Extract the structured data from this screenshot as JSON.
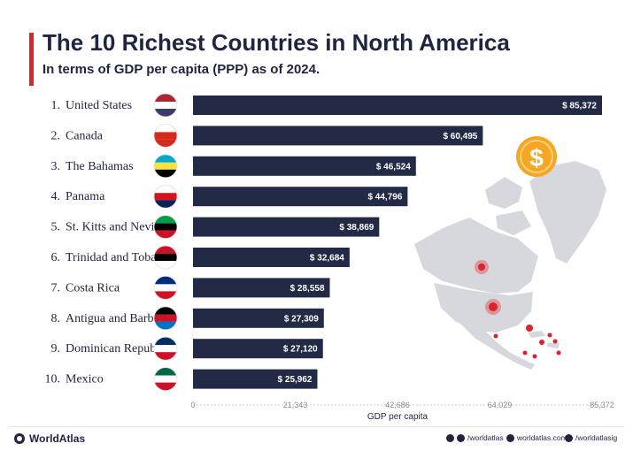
{
  "header": {
    "title": "The 10 Richest Countries in North America",
    "subtitle": "In terms of GDP per capita (PPP) as of 2024."
  },
  "chart_data": {
    "type": "bar",
    "orientation": "horizontal",
    "categories": [
      {
        "rank": "1.",
        "name": "United States"
      },
      {
        "rank": "2.",
        "name": "Canada"
      },
      {
        "rank": "3.",
        "name": "The Bahamas"
      },
      {
        "rank": "4.",
        "name": "Panama"
      },
      {
        "rank": "5.",
        "name": "St. Kitts and Nevis"
      },
      {
        "rank": "6.",
        "name": "Trinidad and Tobago"
      },
      {
        "rank": "7.",
        "name": "Costa Rica"
      },
      {
        "rank": "8.",
        "name": "Antigua and Barboda"
      },
      {
        "rank": "9.",
        "name": "Dominican Republic"
      },
      {
        "rank": "10.",
        "name": "Mexico"
      }
    ],
    "values": [
      85372,
      60495,
      46524,
      44796,
      38869,
      32684,
      28558,
      27309,
      27120,
      25962
    ],
    "value_labels": [
      "$ 85,372",
      "$ 60,495",
      "$ 46,524",
      "$ 44,796",
      "$ 38,869",
      "$ 32,684",
      "$ 28,558",
      "$ 27,309",
      "$ 27,120",
      "$ 25,962"
    ],
    "xlabel": "GDP per capita",
    "xticks": [
      "0",
      "21,343",
      "42,686",
      "64,029",
      "85,372"
    ],
    "xtick_values": [
      0,
      21343,
      42686,
      64029,
      85372
    ],
    "xlim": [
      0,
      85372
    ],
    "bar_color": "#222a45"
  },
  "footer": {
    "brand": "WorldAtlas",
    "social_1": "/worldatlas",
    "social_2": "worldatlas.com",
    "social_3": "/worldatlasig"
  }
}
